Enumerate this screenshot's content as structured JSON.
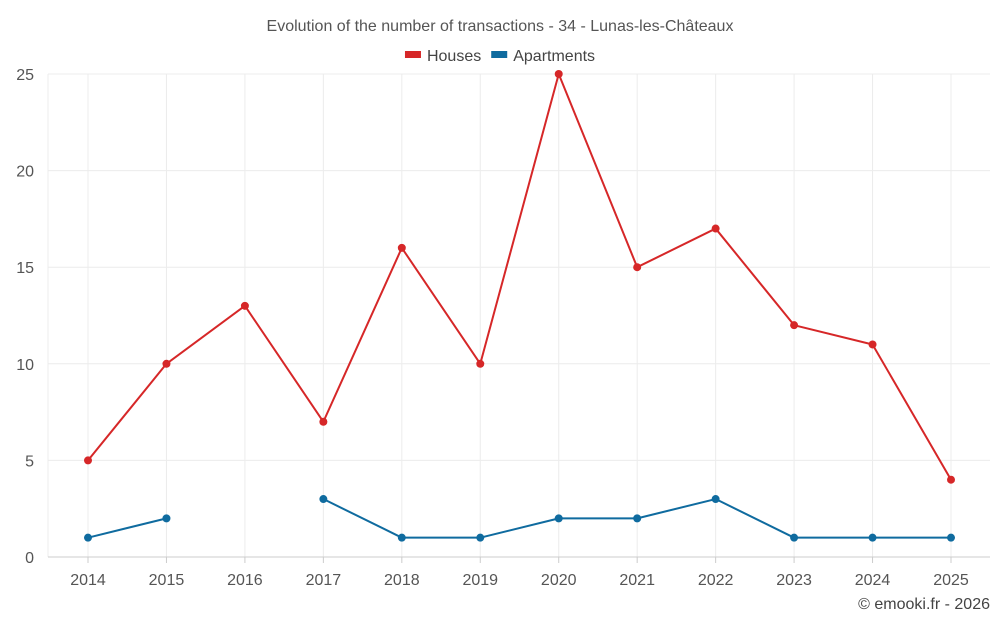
{
  "chart_data": {
    "type": "line",
    "title": "Evolution of the number of transactions - 34 - Lunas-les-Châteaux",
    "categories": [
      "2014",
      "2015",
      "2016",
      "2017",
      "2018",
      "2019",
      "2020",
      "2021",
      "2022",
      "2023",
      "2024",
      "2025"
    ],
    "series": [
      {
        "name": "Houses",
        "color": "#d62728",
        "values": [
          5,
          10,
          13,
          7,
          16,
          10,
          25,
          15,
          17,
          12,
          11,
          4
        ]
      },
      {
        "name": "Apartments",
        "color": "#0f6b9f",
        "values": [
          1,
          2,
          null,
          3,
          1,
          1,
          2,
          2,
          3,
          1,
          1,
          1
        ]
      }
    ],
    "ylim": [
      0,
      25
    ],
    "yticks": [
      0,
      5,
      10,
      15,
      20,
      25
    ],
    "xlabel": "",
    "ylabel": "",
    "grid": true,
    "legend": "top-center"
  },
  "credit": "© emooki.fr - 2026"
}
